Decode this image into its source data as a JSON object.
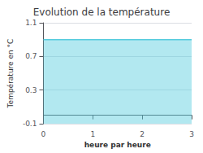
{
  "chart_data": {
    "type": "area",
    "title": "Evolution de la température",
    "x_label": "heure par heure",
    "y_label": "Température en °C",
    "x": [
      0,
      3
    ],
    "values": [
      0.9,
      0.9
    ],
    "color": "#55ccdd",
    "xlim": [
      0,
      3
    ],
    "xticks": [
      0,
      1,
      2,
      3
    ],
    "ylim": [
      -0.1,
      1.1
    ],
    "yticks": [
      -0.1,
      0.3,
      0.7,
      1.1
    ],
    "grid": true
  }
}
